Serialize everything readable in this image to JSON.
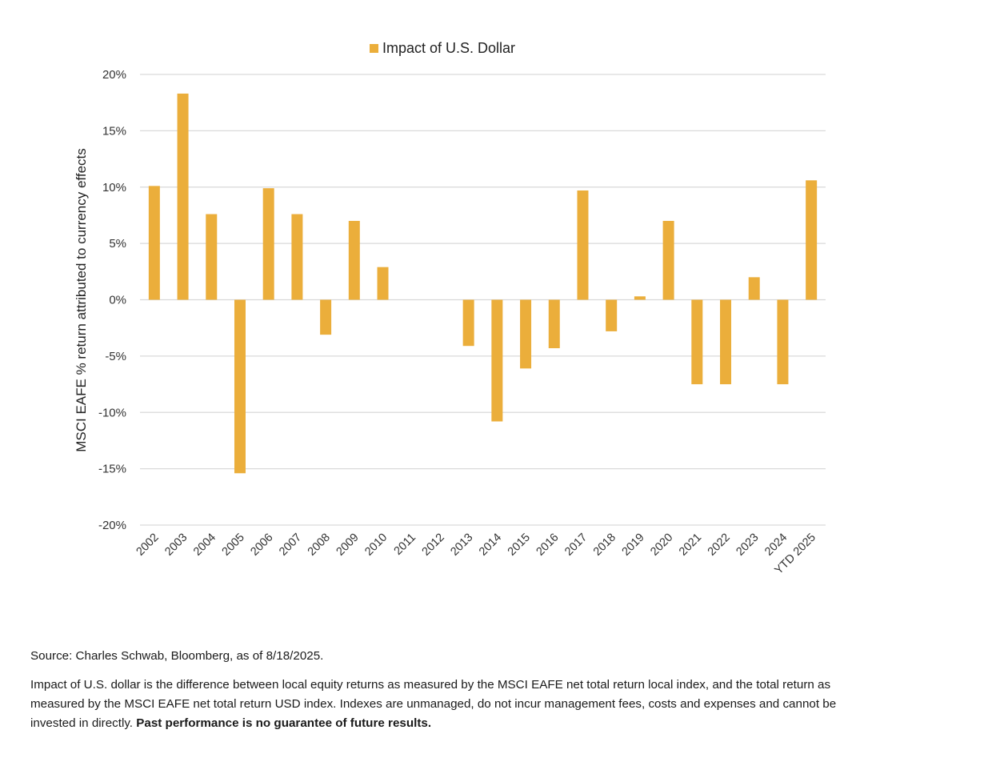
{
  "chart_data": {
    "type": "bar",
    "legend": "Impact of U.S. Dollar",
    "ylabel": "MSCI EAFE % return attributed to currency effects",
    "xlabel": "",
    "ylim": [
      -20,
      20
    ],
    "yticks": [
      20,
      15,
      10,
      5,
      0,
      -5,
      -10,
      -15,
      -20
    ],
    "ytick_labels": [
      "20%",
      "15%",
      "10%",
      "5%",
      "0%",
      "-5%",
      "-10%",
      "-15%",
      "-20%"
    ],
    "grid": true,
    "legend_position": "top-center",
    "categories": [
      "2002",
      "2003",
      "2004",
      "2005",
      "2006",
      "2007",
      "2008",
      "2009",
      "2010",
      "2011",
      "2012",
      "2013",
      "2014",
      "2015",
      "2016",
      "2017",
      "2018",
      "2019",
      "2020",
      "2021",
      "2022",
      "2023",
      "2024",
      "YTD 2025"
    ],
    "values": [
      10.1,
      18.3,
      7.6,
      -15.4,
      9.9,
      7.6,
      -3.1,
      7.0,
      2.9,
      0,
      0,
      -4.1,
      -10.8,
      -6.1,
      -4.3,
      9.7,
      -2.8,
      0.3,
      7.0,
      -7.5,
      -7.5,
      2.0,
      -7.5,
      10.6
    ],
    "bar_color": "#EBAE3B"
  },
  "notes": {
    "source": "Source: Charles Schwab, Bloomberg, as of 8/18/2025.",
    "disclaimer_text": "Impact of U.S. dollar is the difference between local equity returns as measured by the MSCI EAFE net total return local index, and the total return as measured by the MSCI EAFE net total return USD index. Indexes are unmanaged, do not incur management fees, costs and expenses and cannot be invested in directly. ",
    "disclaimer_bold": "Past performance is no guarantee of future results."
  }
}
